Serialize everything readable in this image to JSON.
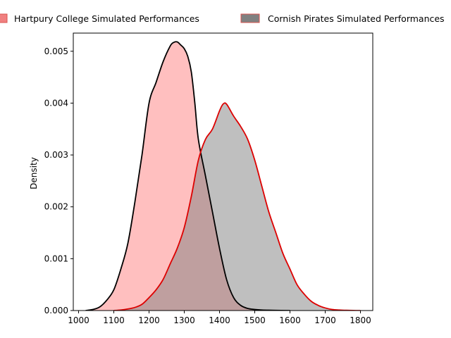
{
  "chart_data": {
    "type": "area",
    "title": "",
    "xlabel": "",
    "ylabel": "Density",
    "xlim": [
      985,
      1835
    ],
    "ylim": [
      0,
      0.00535
    ],
    "xticks": [
      1000,
      1100,
      1200,
      1300,
      1400,
      1500,
      1600,
      1700,
      1800
    ],
    "xtick_labels": [
      "1000",
      "1100",
      "1200",
      "1300",
      "1400",
      "1500",
      "1600",
      "1700",
      "1800"
    ],
    "yticks": [
      0,
      0.001,
      0.002,
      0.003,
      0.004,
      0.005
    ],
    "ytick_labels": [
      "0.000",
      "0.001",
      "0.002",
      "0.003",
      "0.004",
      "0.005"
    ],
    "grid": false,
    "legend_position": "top, above plot",
    "series": [
      {
        "name": "Hartpury College Simulated Performances",
        "fill_color": "#ff8080",
        "fill_opacity": 0.5,
        "line_color": "#000000",
        "x": [
          1020,
          1040,
          1060,
          1080,
          1100,
          1120,
          1140,
          1160,
          1180,
          1200,
          1220,
          1240,
          1260,
          1270,
          1280,
          1290,
          1300,
          1310,
          1320,
          1330,
          1340,
          1360,
          1380,
          1400,
          1420,
          1440,
          1460,
          1480,
          1500,
          1520,
          1560,
          1600
        ],
        "y": [
          0,
          2e-05,
          7e-05,
          0.0002,
          0.0004,
          0.0008,
          0.0013,
          0.0021,
          0.003,
          0.004,
          0.0044,
          0.0048,
          0.0051,
          0.00517,
          0.00518,
          0.00512,
          0.00505,
          0.0049,
          0.0046,
          0.004,
          0.0033,
          0.0026,
          0.0019,
          0.0012,
          0.0006,
          0.00025,
          0.0001,
          4e-05,
          2e-05,
          1e-05,
          3e-06,
          0
        ]
      },
      {
        "name": "Cornish Pirates Simulated Performances",
        "fill_color": "#808080",
        "fill_opacity": 0.5,
        "line_color": "#dd0000",
        "x": [
          1100,
          1120,
          1140,
          1160,
          1180,
          1200,
          1220,
          1240,
          1260,
          1280,
          1300,
          1320,
          1340,
          1360,
          1380,
          1400,
          1410,
          1420,
          1440,
          1460,
          1480,
          1500,
          1520,
          1540,
          1560,
          1580,
          1600,
          1620,
          1640,
          1660,
          1680,
          1700,
          1720,
          1740,
          1760,
          1780,
          1800
        ],
        "y": [
          0,
          1e-05,
          3e-05,
          6e-05,
          0.00012,
          0.00025,
          0.0004,
          0.0006,
          0.0009,
          0.0012,
          0.0016,
          0.0022,
          0.0029,
          0.0033,
          0.0035,
          0.00385,
          0.00398,
          0.00398,
          0.00375,
          0.00355,
          0.0033,
          0.0029,
          0.0024,
          0.0019,
          0.0015,
          0.0011,
          0.0008,
          0.0005,
          0.00032,
          0.00018,
          0.0001,
          5e-05,
          2e-05,
          1e-05,
          4e-06,
          1e-06,
          0
        ]
      }
    ]
  }
}
